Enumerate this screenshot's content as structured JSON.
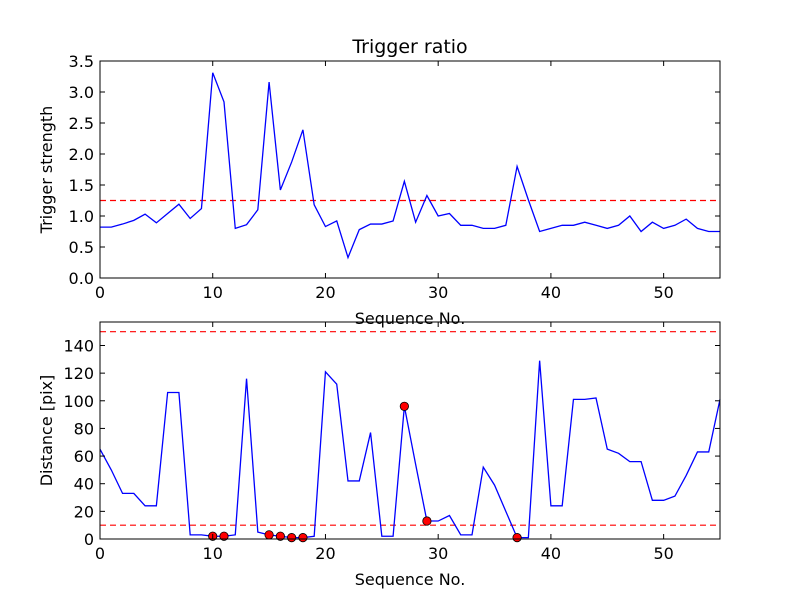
{
  "chart_data": [
    {
      "type": "line",
      "title": "Trigger ratio",
      "xlabel": "Sequence No.",
      "ylabel": "Trigger strength",
      "xlim": [
        0,
        55
      ],
      "ylim": [
        0,
        3.5
      ],
      "xticks": [
        "0",
        "10",
        "20",
        "30",
        "40",
        "50"
      ],
      "yticks": [
        "0.0",
        "0.5",
        "1.0",
        "1.5",
        "2.0",
        "2.5",
        "3.0",
        "3.5"
      ],
      "grid": false,
      "line_color": "#0000ff",
      "threshold_color": "#ff0000",
      "thresholds": [
        1.25
      ],
      "series": [
        {
          "x": [
            0,
            1,
            2,
            3,
            4,
            5,
            6,
            7,
            8,
            9,
            10,
            11,
            12,
            13,
            14,
            15,
            16,
            17,
            18,
            19,
            20,
            21,
            22,
            23,
            24,
            25,
            26,
            27,
            28,
            29,
            30,
            31,
            32,
            33,
            34,
            35,
            36,
            37,
            38,
            39,
            40,
            41,
            42,
            43,
            44,
            45,
            46,
            47,
            48,
            49,
            50,
            51,
            52,
            53,
            54,
            55
          ],
          "y": [
            0.82,
            0.82,
            0.87,
            0.93,
            1.03,
            0.89,
            1.04,
            1.19,
            0.96,
            1.12,
            3.31,
            2.84,
            0.8,
            0.86,
            1.1,
            3.16,
            1.42,
            1.87,
            2.39,
            1.18,
            0.83,
            0.92,
            0.33,
            0.78,
            0.87,
            0.87,
            0.92,
            1.56,
            0.9,
            1.33,
            1.0,
            1.04,
            0.85,
            0.85,
            0.8,
            0.8,
            0.85,
            1.8,
            1.26,
            0.75,
            0.8,
            0.85,
            0.85,
            0.9,
            0.85,
            0.8,
            0.85,
            1.0,
            0.75,
            0.9,
            0.8,
            0.85,
            0.95,
            0.8,
            0.75,
            0.75
          ]
        }
      ]
    },
    {
      "type": "line",
      "title": "",
      "xlabel": "Sequence No.",
      "ylabel": "Distance [pix]",
      "xlim": [
        0,
        55
      ],
      "ylim": [
        0,
        157
      ],
      "xticks": [
        "0",
        "10",
        "20",
        "30",
        "40",
        "50"
      ],
      "yticks": [
        "0",
        "20",
        "40",
        "60",
        "80",
        "100",
        "120",
        "140"
      ],
      "grid": false,
      "line_color": "#0000ff",
      "threshold_color": "#ff0000",
      "marker_color": "#ff0000",
      "thresholds": [
        150,
        10
      ],
      "series": [
        {
          "x": [
            0,
            1,
            2,
            3,
            4,
            5,
            6,
            7,
            8,
            9,
            10,
            11,
            12,
            13,
            14,
            15,
            16,
            17,
            18,
            19,
            20,
            21,
            22,
            23,
            24,
            25,
            26,
            27,
            28,
            29,
            30,
            31,
            32,
            33,
            34,
            35,
            36,
            37,
            38,
            39,
            40,
            41,
            42,
            43,
            44,
            45,
            46,
            47,
            48,
            49,
            50,
            51,
            52,
            53,
            54,
            55
          ],
          "y": [
            65,
            50,
            33,
            33,
            24,
            24,
            106,
            106,
            3,
            3,
            2,
            2,
            3,
            116,
            5,
            3,
            2,
            1,
            1,
            2,
            121,
            112,
            42,
            42,
            77,
            2,
            2,
            96,
            54,
            13,
            13,
            17,
            3,
            3,
            52,
            39,
            20,
            1,
            1,
            129,
            24,
            24,
            101,
            101,
            102,
            65,
            62,
            56,
            56,
            28,
            28,
            31,
            46,
            63,
            63,
            101
          ]
        },
        {
          "name": "",
          "markers": true,
          "x": [
            10,
            11,
            15,
            16,
            17,
            18,
            27,
            29,
            37
          ],
          "y": [
            2,
            2,
            3,
            2,
            1,
            1,
            96,
            13,
            1
          ]
        }
      ]
    }
  ]
}
